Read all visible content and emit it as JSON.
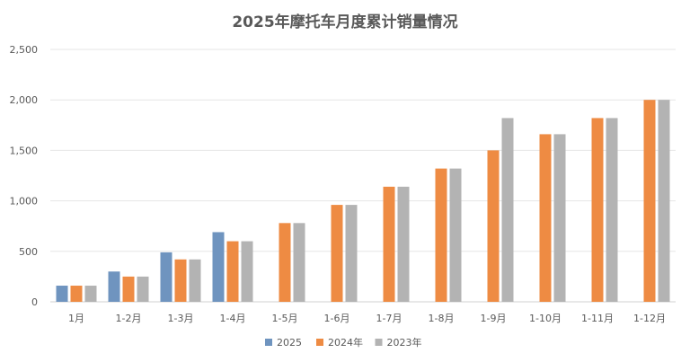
{
  "chart_data": {
    "type": "bar",
    "title": "2025年摩托车月度累计销量情况",
    "xlabel": "",
    "ylabel": "",
    "ylim": [
      0,
      2500
    ],
    "yticks": [
      "0",
      "500",
      "1,000",
      "1,500",
      "2,000",
      "2,500"
    ],
    "categories": [
      "1月",
      "1-2月",
      "1-3月",
      "1-4月",
      "1-5月",
      "1-6月",
      "1-7月",
      "1-8月",
      "1-9月",
      "1-10月",
      "1-11月",
      "1-12月"
    ],
    "series": [
      {
        "name": "2025",
        "color": "#6f94bf",
        "values": [
          160,
          300,
          490,
          690,
          null,
          null,
          null,
          null,
          null,
          null,
          null,
          null
        ]
      },
      {
        "name": "2024年",
        "color": "#ee8b43",
        "values": [
          160,
          250,
          420,
          600,
          780,
          960,
          1140,
          1320,
          1500,
          1660,
          1820,
          2000
        ]
      },
      {
        "name": "2023年",
        "color": "#b3b3b3",
        "values": [
          160,
          250,
          420,
          600,
          780,
          960,
          1140,
          1320,
          1820,
          1660,
          1820,
          2000
        ]
      }
    ],
    "grid": true,
    "legend": "bottom-center"
  }
}
